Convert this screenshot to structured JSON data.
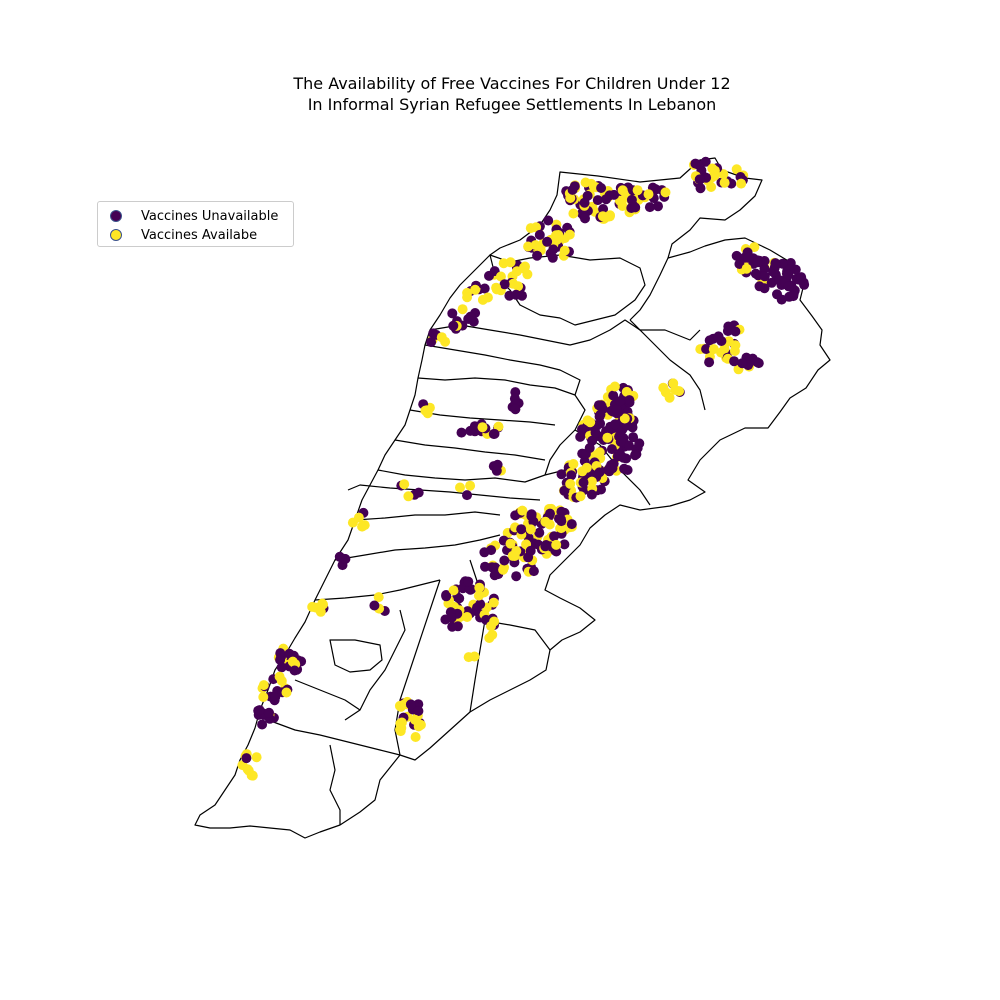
{
  "title": {
    "line1": "The Availability of Free Vaccines For Children Under 12",
    "line2": "In Informal Syrian Refugee Settlements In Lebanon"
  },
  "legend": {
    "items": [
      {
        "label": "Vaccines Unavailable",
        "color": "#440154"
      },
      {
        "label": "Vaccines Availabe",
        "color": "#fde725"
      }
    ]
  },
  "colors": {
    "unavailable": "#440154",
    "available": "#fde725",
    "outline": "#000000"
  },
  "map": {
    "country": "Lebanon",
    "outline": "district-boundaries"
  }
}
